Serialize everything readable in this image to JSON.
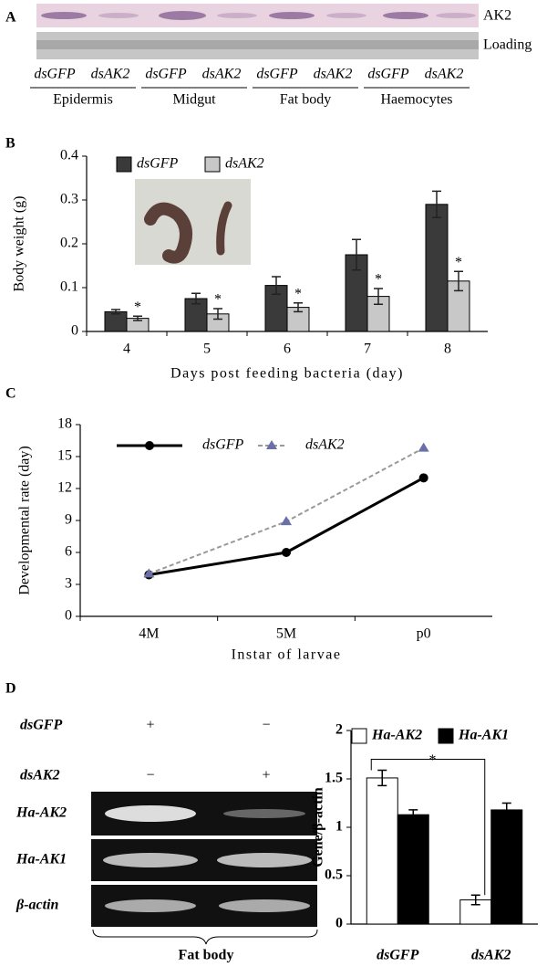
{
  "panel_labels": [
    "A",
    "B",
    "C",
    "D"
  ],
  "blot": {
    "bands": [
      "AK2",
      "Loading"
    ],
    "lanes": [
      "dsGFP",
      "dsAK2",
      "dsGFP",
      "dsAK2",
      "dsGFP",
      "dsAK2",
      "dsGFP",
      "dsAK2"
    ],
    "tissues": [
      "Epidermis",
      "Midgut",
      "Fat body",
      "Haemocytes"
    ]
  },
  "gel": {
    "rows": [
      "dsGFP",
      "dsAK2"
    ],
    "treatments": [
      [
        "+",
        "−"
      ],
      [
        "−",
        "+"
      ]
    ],
    "bands": [
      "Ha-AK2",
      "Ha-AK1",
      "β-actin"
    ],
    "tissue": "Fat body"
  },
  "chart_data": [
    {
      "type": "bar",
      "xlabel": "Days post feeding bacteria (day)",
      "ylabel": "Body weight (g)",
      "categories": [
        "4",
        "5",
        "6",
        "7",
        "8"
      ],
      "series": [
        {
          "name": "dsGFP",
          "color": "#3a3a3a",
          "values": [
            0.045,
            0.075,
            0.105,
            0.175,
            0.29
          ],
          "errors": [
            0.005,
            0.012,
            0.02,
            0.035,
            0.03
          ]
        },
        {
          "name": "dsAK2",
          "color": "#c8c8c8",
          "values": [
            0.03,
            0.04,
            0.055,
            0.08,
            0.115
          ],
          "errors": [
            0.005,
            0.012,
            0.01,
            0.018,
            0.022
          ]
        }
      ],
      "annotations": [
        "*",
        "*",
        "*",
        "*",
        "*"
      ],
      "ylim": [
        0,
        0.4
      ],
      "yticks": [
        0,
        0.1,
        0.2,
        0.3,
        0.4
      ]
    },
    {
      "type": "line",
      "xlabel": "Instar of larvae",
      "ylabel": "Developmental rate (day)",
      "categories": [
        "4M",
        "5M",
        "p0"
      ],
      "series": [
        {
          "name": "dsGFP",
          "color": "#000000",
          "marker": "circle",
          "dashed": false,
          "values": [
            3.9,
            6,
            13
          ]
        },
        {
          "name": "dsAK2",
          "color": "#6b6fa8",
          "marker": "triangle",
          "dashed": true,
          "values": [
            4,
            8.9,
            15.8
          ]
        }
      ],
      "ylim": [
        0,
        18
      ],
      "yticks": [
        0,
        3,
        6,
        9,
        12,
        15,
        18
      ]
    },
    {
      "type": "bar",
      "ylabel": "Gene/β-actin",
      "categories": [
        "dsGFP",
        "dsAK2"
      ],
      "series": [
        {
          "name": "Ha-AK2",
          "color": "#ffffff",
          "values": [
            1.51,
            0.25
          ],
          "errors": [
            0.08,
            0.05
          ]
        },
        {
          "name": "Ha-AK1",
          "color": "#000000",
          "values": [
            1.13,
            1.18
          ],
          "errors": [
            0.05,
            0.07
          ]
        }
      ],
      "annotation": "*",
      "ylim": [
        0,
        2
      ],
      "yticks": [
        0,
        0.5,
        1,
        1.5,
        2
      ]
    }
  ]
}
